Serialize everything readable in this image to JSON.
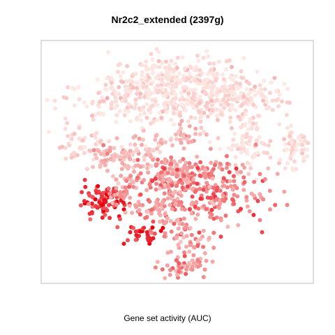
{
  "chart_data": {
    "type": "scatter",
    "title": "Nr2c2_extended (2397g)",
    "xlabel": "Gene set activity (AUC)",
    "ylabel": "",
    "xlim": [
      0,
      100
    ],
    "ylim": [
      0,
      100
    ],
    "grid": false,
    "color_scale": {
      "low": "#fde8e4",
      "mid": "#f4a3a3",
      "high": "#e8000d"
    },
    "clusters": [
      {
        "cx": 50,
        "cy": 84,
        "sx": 12,
        "sy": 5,
        "n": 260,
        "level": 0.05
      },
      {
        "cx": 30,
        "cy": 75,
        "sx": 12,
        "sy": 5,
        "n": 150,
        "level": 0.07
      },
      {
        "cx": 60,
        "cy": 74,
        "sx": 13,
        "sy": 4,
        "n": 150,
        "level": 0.05
      },
      {
        "cx": 72,
        "cy": 78,
        "sx": 9,
        "sy": 4,
        "n": 90,
        "level": 0.08
      },
      {
        "cx": 77,
        "cy": 57,
        "sx": 4,
        "sy": 7,
        "n": 80,
        "level": 0.05
      },
      {
        "cx": 93,
        "cy": 56,
        "sx": 3,
        "sy": 4,
        "n": 60,
        "level": 0.05
      },
      {
        "cx": 15,
        "cy": 57,
        "sx": 5,
        "sy": 4,
        "n": 50,
        "level": 0.15
      },
      {
        "cx": 26,
        "cy": 52,
        "sx": 6,
        "sy": 3,
        "n": 60,
        "level": 0.35
      },
      {
        "cx": 40,
        "cy": 55,
        "sx": 5,
        "sy": 3,
        "n": 50,
        "level": 0.3
      },
      {
        "cx": 22,
        "cy": 34,
        "sx": 4,
        "sy": 3,
        "n": 90,
        "level": 0.85
      },
      {
        "cx": 29,
        "cy": 38,
        "sx": 3,
        "sy": 3,
        "n": 30,
        "level": 0.5
      },
      {
        "cx": 48,
        "cy": 45,
        "sx": 7,
        "sy": 4,
        "n": 140,
        "level": 0.5
      },
      {
        "cx": 63,
        "cy": 38,
        "sx": 10,
        "sy": 7,
        "n": 220,
        "level": 0.6
      },
      {
        "cx": 43,
        "cy": 30,
        "sx": 7,
        "sy": 4,
        "n": 80,
        "level": 0.55
      },
      {
        "cx": 37,
        "cy": 20,
        "sx": 4,
        "sy": 2,
        "n": 30,
        "level": 0.85
      },
      {
        "cx": 54,
        "cy": 19,
        "sx": 5,
        "sy": 3,
        "n": 40,
        "level": 0.5
      },
      {
        "cx": 53,
        "cy": 8,
        "sx": 5,
        "sy": 3,
        "n": 60,
        "level": 0.55
      },
      {
        "cx": 53,
        "cy": 62,
        "sx": 3,
        "sy": 3,
        "n": 30,
        "level": 0.4
      }
    ]
  }
}
